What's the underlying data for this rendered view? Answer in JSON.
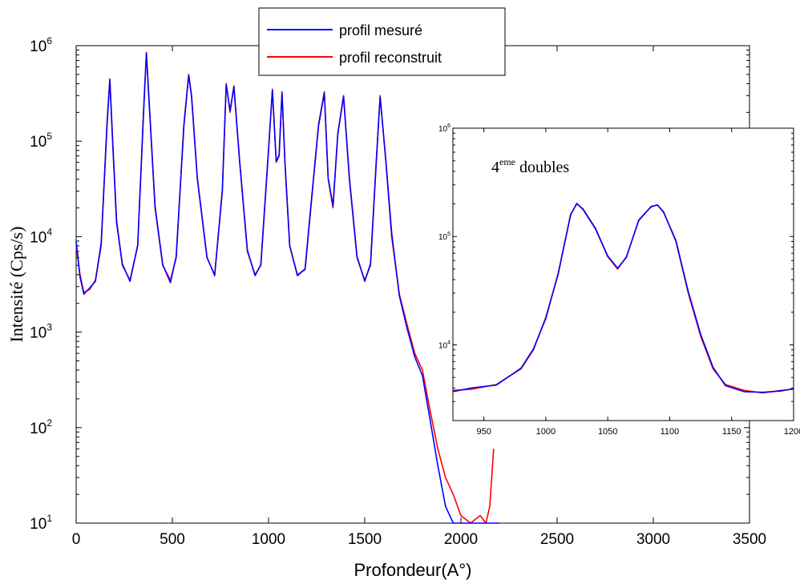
{
  "chart_data": [
    {
      "type": "line",
      "title": "",
      "xlabel": "Profondeur(A°)",
      "ylabel": "Intensité (Cps/s)",
      "xlim": [
        0,
        3500
      ],
      "ylim": [
        10,
        1000000
      ],
      "yscale": "log",
      "x_ticks": [
        "0",
        "500",
        "1000",
        "1500",
        "2000",
        "2500",
        "3000",
        "3500"
      ],
      "y_ticks": [
        {
          "base": "10",
          "exp": "1"
        },
        {
          "base": "10",
          "exp": "2"
        },
        {
          "base": "10",
          "exp": "3"
        },
        {
          "base": "10",
          "exp": "4"
        },
        {
          "base": "10",
          "exp": "5"
        },
        {
          "base": "10",
          "exp": "6"
        }
      ],
      "legend": {
        "position": "top-center",
        "entries": [
          {
            "label": "profil mesuré",
            "color": "#0000ff"
          },
          {
            "label": "profil reconstruit",
            "color": "#ff0000"
          }
        ]
      },
      "series": [
        {
          "name": "profil reconstruit",
          "color": "#ff0000",
          "x": [
            0,
            20,
            40,
            70,
            100,
            130,
            160,
            175,
            190,
            210,
            240,
            280,
            320,
            350,
            365,
            380,
            410,
            450,
            490,
            520,
            560,
            585,
            600,
            630,
            680,
            720,
            760,
            780,
            800,
            820,
            850,
            890,
            930,
            960,
            1000,
            1020,
            1040,
            1055,
            1070,
            1085,
            1110,
            1150,
            1190,
            1220,
            1260,
            1290,
            1310,
            1335,
            1360,
            1390,
            1420,
            1460,
            1500,
            1530,
            1560,
            1580,
            1610,
            1640,
            1680,
            1720,
            1760,
            1800,
            1840,
            1880,
            1920,
            1960,
            2000,
            2050,
            2100,
            2130,
            2150,
            2170
          ],
          "y": [
            8000,
            4000,
            2600,
            2800,
            3500,
            8000,
            150000,
            450000,
            100000,
            15000,
            5000,
            3500,
            8000,
            200000,
            850000,
            250000,
            20000,
            5000,
            3500,
            6000,
            150000,
            500000,
            300000,
            40000,
            6000,
            4000,
            30000,
            400000,
            200000,
            380000,
            60000,
            7000,
            4000,
            5000,
            80000,
            350000,
            60000,
            70000,
            330000,
            60000,
            8000,
            4000,
            4500,
            20000,
            150000,
            330000,
            40000,
            20000,
            120000,
            300000,
            40000,
            6000,
            3500,
            5000,
            60000,
            300000,
            60000,
            10000,
            2500,
            1200,
            600,
            400,
            150,
            60,
            30,
            20,
            12,
            10,
            12,
            10,
            15,
            60
          ]
        },
        {
          "name": "profil mesuré",
          "color": "#0000ff",
          "x": [
            0,
            20,
            40,
            70,
            100,
            130,
            160,
            175,
            190,
            210,
            240,
            280,
            320,
            350,
            365,
            380,
            410,
            450,
            490,
            520,
            560,
            585,
            600,
            630,
            680,
            720,
            760,
            780,
            800,
            820,
            850,
            890,
            930,
            960,
            1000,
            1020,
            1040,
            1055,
            1070,
            1085,
            1110,
            1150,
            1190,
            1220,
            1260,
            1290,
            1310,
            1335,
            1360,
            1390,
            1420,
            1460,
            1500,
            1530,
            1560,
            1580,
            1610,
            1640,
            1680,
            1720,
            1760,
            1800,
            1840,
            1880,
            1920,
            1960,
            2000,
            2050,
            2100,
            2150,
            2200
          ],
          "y": [
            9000,
            3800,
            2500,
            2900,
            3400,
            8500,
            140000,
            440000,
            95000,
            14000,
            5200,
            3400,
            8200,
            190000,
            830000,
            240000,
            21000,
            5100,
            3300,
            6200,
            145000,
            490000,
            290000,
            41000,
            6100,
            3900,
            31000,
            390000,
            210000,
            370000,
            61000,
            7200,
            3900,
            5100,
            82000,
            340000,
            61000,
            72000,
            320000,
            62000,
            8100,
            3900,
            4600,
            21000,
            145000,
            320000,
            41000,
            21000,
            118000,
            295000,
            42000,
            6200,
            3400,
            5200,
            62000,
            290000,
            62000,
            11000,
            2400,
            1100,
            550,
            350,
            120,
            40,
            15,
            10,
            10,
            10,
            10,
            10,
            10
          ]
        }
      ]
    },
    {
      "type": "line",
      "title": "",
      "annotation": {
        "base": "4",
        "sup": "eme",
        "rest": " doubles"
      },
      "xlim": [
        925,
        1200
      ],
      "ylim": [
        2000,
        1000000
      ],
      "yscale": "log",
      "x_ticks": [
        "950",
        "1000",
        "1050",
        "1100",
        "1150",
        "1200"
      ],
      "y_ticks": [
        {
          "value": 10000,
          "base": "10",
          "exp": "4"
        },
        {
          "value": 100000,
          "base": "10",
          "exp": "5"
        },
        {
          "value": 1000000,
          "base": "10",
          "exp": "6"
        }
      ],
      "series": [
        {
          "name": "",
          "color": "#ff0000",
          "x": [
            925,
            940,
            960,
            980,
            990,
            1000,
            1010,
            1020,
            1025,
            1030,
            1040,
            1050,
            1058,
            1065,
            1075,
            1085,
            1090,
            1095,
            1105,
            1115,
            1125,
            1135,
            1145,
            1160,
            1175,
            1190,
            1200
          ],
          "y": [
            3800,
            3900,
            4300,
            6000,
            9000,
            18000,
            45000,
            160000,
            200000,
            180000,
            120000,
            65000,
            50000,
            65000,
            140000,
            190000,
            195000,
            170000,
            90000,
            30000,
            12000,
            6000,
            4300,
            3800,
            3600,
            3800,
            3900
          ]
        },
        {
          "name": "",
          "color": "#0000ff",
          "x": [
            925,
            940,
            960,
            980,
            990,
            1000,
            1010,
            1020,
            1025,
            1030,
            1040,
            1050,
            1058,
            1065,
            1075,
            1085,
            1090,
            1095,
            1105,
            1115,
            1125,
            1135,
            1145,
            1160,
            1175,
            1190,
            1200
          ],
          "y": [
            3700,
            4000,
            4250,
            6100,
            9200,
            17500,
            46000,
            158000,
            202000,
            178000,
            118000,
            66000,
            51000,
            64000,
            142000,
            188000,
            196000,
            168000,
            92000,
            31000,
            12500,
            6200,
            4200,
            3700,
            3650,
            3750,
            3950
          ]
        }
      ]
    }
  ]
}
